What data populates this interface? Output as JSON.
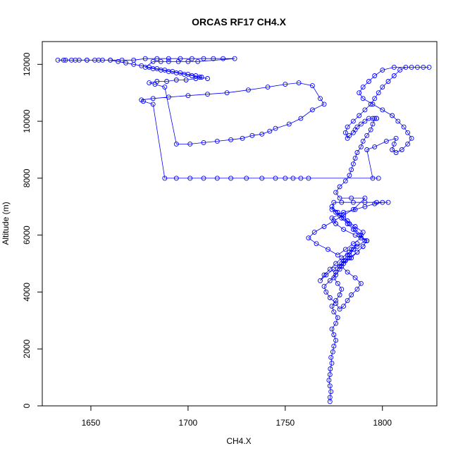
{
  "chart_data": {
    "type": "scatter",
    "title": "ORCAS RF17 CH4.X",
    "xlabel": "CH4.X",
    "ylabel": "Altitude (m)",
    "xlim": [
      1625,
      1828
    ],
    "ylim": [
      0,
      12800
    ],
    "xticks": [
      1650,
      1700,
      1750,
      1800
    ],
    "yticks": [
      0,
      2000,
      4000,
      6000,
      8000,
      10000,
      12000
    ],
    "xtick_labels": [
      "1650",
      "1700",
      "1750",
      "1800"
    ],
    "ytick_labels": [
      "0",
      "2000",
      "4000",
      "6000",
      "8000",
      "10000",
      "12000"
    ],
    "grid": false,
    "marker": "open-circle",
    "series_color": "#0000ff",
    "series": [
      {
        "x": [
          1773,
          1773,
          1773.5,
          1773,
          1772.5,
          1773,
          1773.2,
          1774,
          1773.5,
          1774.5,
          1775,
          1776,
          1775,
          1774,
          1776,
          1777,
          1775,
          1774,
          1776,
          1778,
          1779,
          1777,
          1775,
          1776,
          1778,
          1780,
          1782,
          1784,
          1787,
          1785,
          1783,
          1781,
          1779,
          1782,
          1786,
          1789,
          1787,
          1784,
          1782,
          1780,
          1778,
          1776,
          1773,
          1771,
          1770,
          1773,
          1776,
          1778,
          1780,
          1784,
          1787,
          1790,
          1792,
          1788,
          1785,
          1782,
          1779,
          1776,
          1774,
          1777,
          1780,
          1783,
          1786,
          1789,
          1791,
          1787,
          1783,
          1779,
          1776,
          1773,
          1770,
          1768,
          1771,
          1775,
          1779,
          1783,
          1787,
          1790,
          1792,
          1786,
          1780,
          1776,
          1774,
          1780,
          1786,
          1791,
          1796,
          1800,
          1803,
          1797,
          1791,
          1785,
          1779,
          1775,
          1774,
          1778,
          1782,
          1786,
          1790,
          1789,
          1785,
          1781,
          1777,
          1772,
          1766,
          1762,
          1765,
          1770,
          1775,
          1780,
          1785,
          1791,
          1784,
          1778,
          1776,
          1778,
          1781,
          1783,
          1784,
          1785,
          1786,
          1787,
          1789,
          1790,
          1792,
          1794,
          1795,
          1796,
          1797,
          1797,
          1795,
          1793,
          1791,
          1789,
          1787,
          1786,
          1785,
          1783,
          1782,
          1781,
          1782,
          1785,
          1788,
          1791,
          1794,
          1796,
          1798,
          1800,
          1803,
          1806,
          1809,
          1812,
          1815,
          1818,
          1821,
          1824,
          1806,
          1800,
          1796,
          1793,
          1790,
          1788,
          1790,
          1795,
          1800,
          1805,
          1808,
          1811,
          1813,
          1815,
          1813,
          1810,
          1807,
          1805,
          1806,
          1807,
          1802,
          1796,
          1792,
          1795,
          1798,
          1762,
          1758,
          1754,
          1750,
          1745,
          1738,
          1730,
          1722,
          1715,
          1708,
          1701,
          1694,
          1688,
          1682,
          1677,
          1676,
          1682,
          1690,
          1700,
          1710,
          1720,
          1731,
          1741,
          1750,
          1757,
          1764,
          1768,
          1770,
          1764,
          1758,
          1752,
          1745,
          1742,
          1738,
          1733,
          1728,
          1722,
          1715,
          1708,
          1701,
          1694,
          1688,
          1683,
          1680,
          1684,
          1689,
          1694,
          1699,
          1704,
          1707,
          1704,
          1700,
          1696,
          1692,
          1688,
          1684,
          1680,
          1676,
          1672,
          1668,
          1664,
          1660,
          1656,
          1652,
          1648,
          1644,
          1640,
          1636,
          1633,
          1637,
          1642,
          1648,
          1654,
          1660,
          1666,
          1672,
          1678,
          1684,
          1690,
          1696,
          1702,
          1708,
          1713,
          1718,
          1724,
          1705,
          1700,
          1695,
          1690,
          1686,
          1682,
          1678,
          1682,
          1686,
          1690,
          1694,
          1698,
          1702,
          1706,
          1710
        ],
        "y": [
          150,
          300,
          500,
          700,
          900,
          1100,
          1300,
          1500,
          1700,
          1900,
          2100,
          2300,
          2500,
          2700,
          2900,
          3100,
          3300,
          3500,
          3700,
          3900,
          4100,
          4300,
          4500,
          4700,
          4900,
          5100,
          5300,
          5500,
          5700,
          5500,
          5300,
          5100,
          4900,
          4700,
          4500,
          4300,
          4100,
          3900,
          3700,
          3500,
          3400,
          3600,
          3800,
          4000,
          4200,
          4400,
          4600,
          4800,
          5000,
          5200,
          5400,
          5600,
          5800,
          6000,
          6200,
          6400,
          6600,
          6800,
          7000,
          6800,
          6600,
          6400,
          6200,
          6000,
          5800,
          5600,
          5400,
          5200,
          5000,
          4800,
          4600,
          4400,
          4600,
          4800,
          5000,
          5200,
          5400,
          5600,
          5800,
          6000,
          6200,
          6400,
          6600,
          6800,
          6900,
          7000,
          7100,
          7150,
          7150,
          7150,
          7150,
          7150,
          7150,
          7150,
          6900,
          6700,
          6500,
          6300,
          6100,
          5900,
          5700,
          5500,
          5300,
          5500,
          5700,
          5900,
          6100,
          6300,
          6500,
          6700,
          6900,
          7300,
          7300,
          7300,
          7500,
          7700,
          7900,
          8100,
          8300,
          8500,
          8700,
          8900,
          9100,
          9300,
          9500,
          9700,
          9900,
          10100,
          10100,
          10100,
          10100,
          10100,
          10000,
          9900,
          9800,
          9700,
          9600,
          9500,
          9400,
          9600,
          9800,
          10000,
          10200,
          10400,
          10600,
          10800,
          11000,
          11200,
          11400,
          11600,
          11800,
          11900,
          11900,
          11900,
          11900,
          11900,
          11900,
          11800,
          11600,
          11400,
          11200,
          11000,
          10800,
          10600,
          10400,
          10200,
          10000,
          9800,
          9600,
          9400,
          9200,
          9000,
          8900,
          9000,
          9200,
          9400,
          9300,
          9100,
          9000,
          8000,
          8000,
          8000,
          8000,
          8000,
          8000,
          8000,
          8000,
          8000,
          8000,
          8000,
          8000,
          8000,
          8000,
          8000,
          10600,
          10700,
          10750,
          10800,
          10850,
          10900,
          10950,
          11000,
          11100,
          11200,
          11300,
          11350,
          11250,
          10800,
          10600,
          10400,
          10100,
          9900,
          9750,
          9650,
          9550,
          9500,
          9400,
          9350,
          9300,
          9250,
          9200,
          9200,
          11200,
          11300,
          11350,
          11400,
          11400,
          11450,
          11450,
          11500,
          11550,
          11600,
          11650,
          11700,
          11750,
          11800,
          11850,
          11900,
          11950,
          12000,
          12050,
          12100,
          12150,
          12150,
          12150,
          12150,
          12150,
          12150,
          12150,
          12150,
          12150,
          12150,
          12150,
          12150,
          12150,
          12150,
          12150,
          12200,
          12200,
          12200,
          12200,
          12200,
          12200,
          12200,
          12200,
          12200,
          12100,
          12100,
          12100,
          12100,
          12100,
          12100,
          11900,
          11850,
          11800,
          11750,
          11700,
          11650,
          11600,
          11550,
          11500
        ]
      }
    ]
  }
}
